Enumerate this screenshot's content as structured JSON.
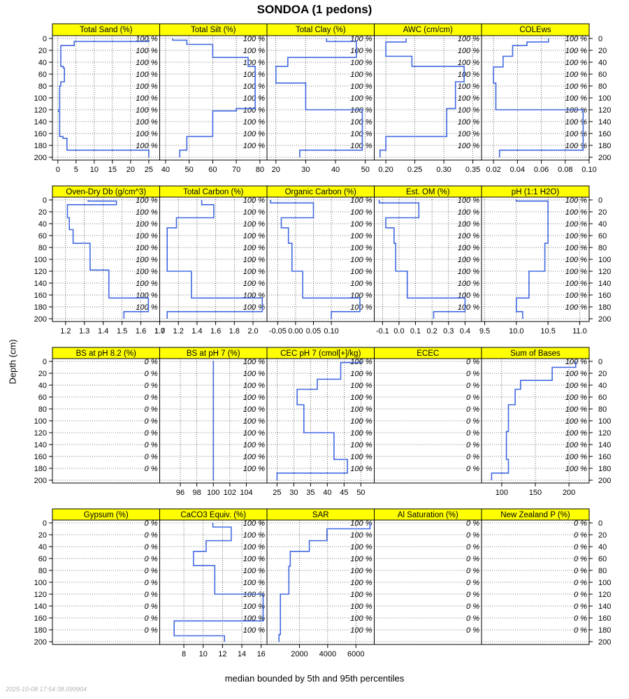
{
  "title": "SONDOA (1 pedons)",
  "ylabel": "Depth (cm)",
  "xlabel": "median bounded by 5th and 95th percentiles",
  "timestamp": "2025-10-08 17:54:38.099904",
  "colors": {
    "strip": "#ffff00",
    "line": "#4169e1",
    "grid": "#000000"
  },
  "depth_ticks": [
    0,
    20,
    40,
    60,
    80,
    100,
    120,
    140,
    160,
    180,
    200
  ],
  "pct_depths": [
    0,
    20,
    40,
    60,
    80,
    100,
    120,
    140,
    160,
    180
  ],
  "chart_data": {
    "type": "line",
    "layout": "4 rows x 5 panels, depth axis reversed (0-200 cm), shared depth scale",
    "ylim": [
      0,
      200
    ],
    "panels": [
      {
        "title": "Total Sand (%)",
        "xlim": [
          -1.5,
          28
        ],
        "ticks": [
          0,
          5,
          10,
          15,
          20,
          25
        ],
        "ticklabels": [
          "0",
          "5",
          "10",
          "15",
          "20",
          "25"
        ],
        "pct": "100 %",
        "depth": [
          2,
          5,
          5,
          12,
          12,
          47,
          47,
          50,
          50,
          73,
          73,
          80,
          80,
          120,
          120,
          123,
          123,
          165,
          165,
          168,
          168,
          188,
          188,
          200
        ],
        "values": [
          25,
          25,
          4.5,
          4.5,
          0.8,
          0.8,
          1.5,
          1.5,
          1.8,
          1.8,
          0.8,
          0.8,
          0.5,
          0.5,
          0.2,
          0.2,
          0.5,
          0.5,
          1.4,
          1.4,
          2.5,
          2.5,
          25,
          25
        ]
      },
      {
        "title": "Total Silt (%)",
        "xlim": [
          37.5,
          83
        ],
        "ticks": [
          40,
          50,
          60,
          70,
          80
        ],
        "ticklabels": [
          "40",
          "50",
          "60",
          "70",
          "80"
        ],
        "pct": "100 %",
        "depth": [
          0,
          3,
          3,
          10,
          10,
          32,
          32,
          47,
          47,
          118,
          118,
          122,
          122,
          165,
          165,
          168,
          168,
          188,
          188,
          200
        ],
        "values": [
          43,
          43,
          49,
          49,
          60,
          60,
          75,
          75,
          78,
          78,
          70,
          70,
          60,
          60,
          49,
          49,
          49,
          49,
          46,
          46
        ]
      },
      {
        "title": "Total Clay (%)",
        "xlim": [
          17,
          53
        ],
        "ticks": [
          20,
          30,
          40,
          50
        ],
        "ticklabels": [
          "20",
          "30",
          "40",
          "50"
        ],
        "pct": "100 %",
        "depth": [
          0,
          5,
          5,
          32,
          32,
          47,
          47,
          75,
          75,
          120,
          120,
          188,
          188,
          200
        ],
        "values": [
          37,
          37,
          47,
          47,
          24,
          24,
          20,
          20,
          30,
          30,
          49,
          49,
          28,
          28
        ]
      },
      {
        "title": "AWC (cm/cm)",
        "xlim": [
          0.18,
          0.365
        ],
        "ticks": [
          0.2,
          0.25,
          0.3,
          0.35
        ],
        "ticklabels": [
          "0.20",
          "0.25",
          "0.30",
          "0.35"
        ],
        "pct": "100 %",
        "depth": [
          0,
          6,
          6,
          30,
          30,
          47,
          47,
          73,
          73,
          118,
          118,
          165,
          165,
          188,
          188,
          200
        ],
        "values": [
          0.235,
          0.235,
          0.2,
          0.2,
          0.245,
          0.245,
          0.335,
          0.335,
          0.32,
          0.32,
          0.305,
          0.305,
          0.2,
          0.2,
          0.19,
          0.19
        ]
      },
      {
        "title": "COLEws",
        "xlim": [
          0.01,
          0.1
        ],
        "ticks": [
          0.02,
          0.04,
          0.06,
          0.08,
          0.1
        ],
        "ticklabels": [
          "0.02",
          "0.04",
          "0.06",
          "0.08",
          "0.10"
        ],
        "pct": "100 %",
        "depth": [
          0,
          6,
          6,
          12,
          12,
          30,
          30,
          48,
          48,
          75,
          75,
          120,
          120,
          188,
          188,
          200
        ],
        "values": [
          0.066,
          0.066,
          0.048,
          0.048,
          0.036,
          0.036,
          0.028,
          0.028,
          0.02,
          0.02,
          0.022,
          0.022,
          0.095,
          0.095,
          0.025,
          0.025
        ]
      },
      {
        "title": "Oven-Dry Db (g/cm^3)",
        "xlim": [
          1.13,
          1.7
        ],
        "ticks": [
          1.2,
          1.3,
          1.4,
          1.5,
          1.6,
          1.7
        ],
        "ticklabels": [
          "1.2",
          "1.3",
          "1.4",
          "1.5",
          "1.6",
          "1.7"
        ],
        "pct": "100 %",
        "depth": [
          0,
          2,
          2,
          8,
          8,
          30,
          30,
          50,
          50,
          73,
          73,
          118,
          118,
          165,
          165,
          188,
          188,
          200
        ],
        "values": [
          1.32,
          1.32,
          1.47,
          1.47,
          1.21,
          1.21,
          1.22,
          1.22,
          1.24,
          1.24,
          1.33,
          1.33,
          1.43,
          1.43,
          1.64,
          1.64,
          1.51,
          1.51
        ]
      },
      {
        "title": "Total Carbon (%)",
        "xlim": [
          1.0,
          2.15
        ],
        "ticks": [
          1.0,
          1.2,
          1.4,
          1.6,
          1.8,
          2.0
        ],
        "ticklabels": [
          "1.0",
          "1.2",
          "1.4",
          "1.6",
          "1.8",
          "2.0"
        ],
        "pct": "100 %",
        "depth": [
          0,
          8,
          8,
          30,
          30,
          47,
          47,
          73,
          73,
          120,
          120,
          165,
          165,
          188,
          188,
          200
        ],
        "values": [
          1.45,
          1.45,
          1.58,
          1.58,
          1.18,
          1.18,
          1.08,
          1.08,
          1.08,
          1.08,
          1.34,
          1.34,
          2.1,
          2.1,
          1.08,
          1.08
        ]
      },
      {
        "title": "Organic Carbon (%)",
        "xlim": [
          -0.08,
          0.22
        ],
        "ticks": [
          -0.05,
          0,
          0.05,
          0.1
        ],
        "ticklabels": [
          "-0.05",
          "0.00",
          "0.05",
          "0.10"
        ],
        "pct": "100 %",
        "depth": [
          0,
          5,
          5,
          30,
          30,
          47,
          47,
          73,
          73,
          120,
          120,
          165,
          165,
          188,
          188,
          200
        ],
        "values": [
          -0.07,
          -0.07,
          0.05,
          0.05,
          -0.04,
          -0.04,
          -0.02,
          -0.02,
          -0.01,
          -0.01,
          0.02,
          0.02,
          0.18,
          0.18,
          0.1,
          0.1
        ]
      },
      {
        "title": "Est. OM (%)",
        "xlim": [
          -0.15,
          0.5
        ],
        "ticks": [
          -0.1,
          0,
          0.1,
          0.2,
          0.3,
          0.4
        ],
        "ticklabels": [
          "-0.1",
          "0.0",
          "0.1",
          "0.2",
          "0.3",
          "0.4"
        ],
        "pct": "100 %",
        "depth": [
          0,
          5,
          5,
          30,
          30,
          47,
          47,
          73,
          73,
          120,
          120,
          165,
          165,
          188,
          188,
          200
        ],
        "values": [
          -0.12,
          -0.12,
          0.12,
          0.12,
          -0.08,
          -0.08,
          -0.03,
          -0.03,
          -0.02,
          -0.02,
          0.05,
          0.05,
          0.4,
          0.4,
          0.21,
          0.21
        ]
      },
      {
        "title": "pH (1:1 H2O)",
        "xlim": [
          9.45,
          11.15
        ],
        "ticks": [
          9.5,
          10,
          10.5,
          11
        ],
        "ticklabels": [
          "9.5",
          "10.0",
          "10.5",
          "11.0"
        ],
        "pct": "100 %",
        "depth": [
          0,
          2,
          2,
          73,
          73,
          120,
          120,
          165,
          165,
          188,
          188,
          200
        ],
        "values": [
          10.0,
          10.0,
          10.5,
          10.5,
          10.45,
          10.45,
          10.2,
          10.2,
          10.0,
          10.0,
          10.1,
          10.1
        ]
      },
      {
        "title": "BS at pH 8.2 (%)",
        "xlim": [
          0,
          1
        ],
        "ticks": [],
        "ticklabels": [],
        "pct": "0 %",
        "depth": [],
        "values": []
      },
      {
        "title": "BS at pH 7 (%)",
        "xlim": [
          93.5,
          106.5
        ],
        "ticks": [
          96,
          98,
          100,
          102,
          104
        ],
        "ticklabels": [
          "96",
          "98",
          "100",
          "102",
          "104"
        ],
        "pct": "100 %",
        "depth": [
          0,
          200
        ],
        "values": [
          100,
          100
        ]
      },
      {
        "title": "CEC pH 7 (cmol[+]/kg)",
        "xlim": [
          22,
          54
        ],
        "ticks": [
          25,
          30,
          35,
          40,
          45,
          50
        ],
        "ticklabels": [
          "25",
          "30",
          "35",
          "40",
          "45",
          "50"
        ],
        "pct": "100 %",
        "depth": [
          0,
          2,
          2,
          30,
          30,
          47,
          47,
          73,
          73,
          120,
          120,
          165,
          165,
          188,
          188,
          200
        ],
        "values": [
          50,
          50,
          44,
          44,
          37,
          37,
          31,
          31,
          33,
          33,
          42,
          42,
          46,
          46,
          25,
          25
        ]
      },
      {
        "title": "ECEC",
        "xlim": [
          0,
          1
        ],
        "ticks": [],
        "ticklabels": [],
        "pct": "0 %",
        "depth": [],
        "values": []
      },
      {
        "title": "Sum of Bases",
        "xlim": [
          70,
          230
        ],
        "ticks": [
          100,
          150,
          200
        ],
        "ticklabels": [
          "100",
          "150",
          "200"
        ],
        "pct": "100 %",
        "depth": [
          0,
          10,
          10,
          32,
          32,
          47,
          47,
          73,
          73,
          118,
          118,
          165,
          165,
          188,
          188,
          200
        ],
        "values": [
          210,
          210,
          175,
          175,
          128,
          128,
          120,
          120,
          110,
          110,
          107,
          107,
          110,
          110,
          85,
          85
        ]
      },
      {
        "title": "Gypsum (%)",
        "xlim": [
          0,
          1
        ],
        "ticks": [],
        "ticklabels": [],
        "pct": "0 %",
        "depth": [],
        "values": []
      },
      {
        "title": "CaCO3 Equiv. (%)",
        "xlim": [
          5.5,
          16.6
        ],
        "ticks": [
          8,
          10,
          12,
          14,
          16
        ],
        "ticklabels": [
          "8",
          "10",
          "12",
          "14",
          "16"
        ],
        "pct": "100 %",
        "depth": [
          0,
          7,
          7,
          30,
          30,
          48,
          48,
          72,
          72,
          120,
          120,
          165,
          165,
          190,
          190,
          200
        ],
        "values": [
          11,
          11,
          12.9,
          12.9,
          10.3,
          10.3,
          9.0,
          9.0,
          11.2,
          11.2,
          16.2,
          16.2,
          7.0,
          7.0,
          12.2,
          12.2
        ]
      },
      {
        "title": "SAR",
        "xlim": [
          -300,
          7300
        ],
        "ticks": [
          2000,
          4000,
          6000
        ],
        "ticklabels": [
          "2000",
          "4000",
          "6000"
        ],
        "pct": "100 %",
        "depth": [
          0,
          10,
          10,
          30,
          30,
          48,
          48,
          73,
          73,
          120,
          120,
          165,
          165,
          188,
          188,
          200
        ],
        "values": [
          7000,
          7000,
          3950,
          3950,
          2700,
          2700,
          1350,
          1350,
          1250,
          1250,
          650,
          650,
          650,
          650,
          550,
          550
        ]
      },
      {
        "title": "Al Saturation (%)",
        "xlim": [
          0,
          1
        ],
        "ticks": [],
        "ticklabels": [],
        "pct": "0 %",
        "depth": [],
        "values": []
      },
      {
        "title": "New Zealand P (%)",
        "xlim": [
          0,
          1
        ],
        "ticks": [],
        "ticklabels": [],
        "pct": "0 %",
        "depth": [],
        "values": []
      }
    ]
  }
}
